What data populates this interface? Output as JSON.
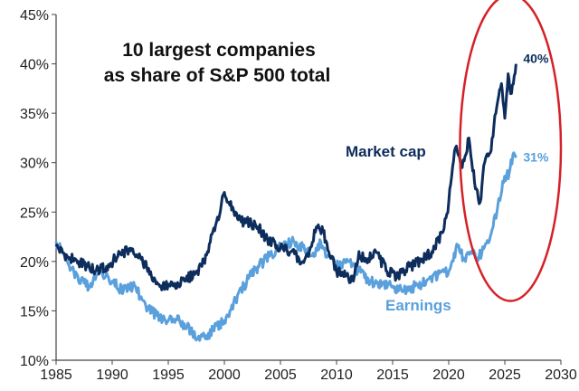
{
  "chart_data": {
    "type": "line",
    "title": "10 largest companies\nas share of S&P 500 total",
    "xlabel": "",
    "ylabel": "",
    "xlim": [
      1985,
      2030
    ],
    "ylim": [
      10,
      45
    ],
    "x_ticks": [
      "1985",
      "1990",
      "1995",
      "2000",
      "2005",
      "2010",
      "2015",
      "2020",
      "2025",
      "2030"
    ],
    "y_ticks": [
      "10%",
      "15%",
      "20%",
      "25%",
      "30%",
      "35%",
      "40%",
      "45%"
    ],
    "grid": false,
    "series": [
      {
        "name": "Market cap",
        "color": "#0d2d5c",
        "end_label": "40%",
        "x": [
          1985.0,
          1986.0,
          1987.0,
          1987.8,
          1988.5,
          1989.5,
          1990.5,
          1991.5,
          1992.5,
          1993.5,
          1994.5,
          1995.5,
          1996.5,
          1997.5,
          1998.0,
          1998.5,
          1999.3,
          2000.0,
          2000.4,
          2001.0,
          2001.5,
          2002.0,
          2003.0,
          2004.0,
          2005.0,
          2006.0,
          2007.0,
          2007.5,
          2008.2,
          2008.8,
          2009.3,
          2010.0,
          2010.8,
          2011.5,
          2012.0,
          2012.5,
          2013.5,
          2014.5,
          2015.5,
          2016.5,
          2017.5,
          2018.5,
          2019.5,
          2020.0,
          2020.6,
          2021.2,
          2021.8,
          2022.3,
          2022.8,
          2023.2,
          2023.7,
          2024.2,
          2024.7,
          2025.0,
          2025.3,
          2025.6,
          2026.0
        ],
        "values": [
          21.5,
          20.5,
          20.0,
          19.5,
          19.0,
          19.5,
          20.5,
          21.2,
          20.5,
          18.5,
          17.5,
          17.5,
          18.0,
          19.0,
          19.5,
          21.0,
          24.0,
          27.0,
          26.0,
          25.0,
          24.0,
          24.0,
          23.5,
          22.0,
          21.5,
          21.0,
          20.0,
          20.5,
          23.5,
          23.0,
          21.0,
          19.0,
          18.5,
          18.0,
          21.0,
          20.0,
          21.0,
          19.0,
          18.5,
          19.5,
          20.0,
          21.0,
          23.0,
          26.0,
          31.5,
          29.5,
          32.5,
          28.0,
          26.0,
          30.0,
          31.0,
          35.0,
          38.0,
          34.5,
          39.0,
          37.0,
          40.0
        ]
      },
      {
        "name": "Earnings",
        "color": "#5aa0dc",
        "end_label": "31%",
        "x": [
          1985.0,
          1986.0,
          1987.0,
          1988.0,
          1989.0,
          1990.0,
          1991.0,
          1992.0,
          1993.0,
          1994.0,
          1995.0,
          1996.0,
          1997.0,
          1997.8,
          1998.4,
          1999.0,
          2000.0,
          2001.0,
          2002.0,
          2003.0,
          2004.0,
          2005.0,
          2006.0,
          2007.0,
          2008.0,
          2008.6,
          2009.2,
          2010.0,
          2011.0,
          2012.0,
          2013.0,
          2014.0,
          2015.0,
          2016.0,
          2017.0,
          2018.0,
          2019.0,
          2020.0,
          2020.8,
          2021.5,
          2022.0,
          2022.7,
          2023.2,
          2023.7,
          2024.3,
          2024.9,
          2025.4,
          2025.8,
          2026.0
        ],
        "values": [
          22.0,
          20.0,
          18.0,
          17.5,
          19.0,
          18.0,
          17.0,
          17.5,
          15.5,
          14.5,
          14.0,
          14.0,
          13.0,
          12.0,
          12.5,
          13.0,
          14.0,
          16.0,
          18.0,
          19.5,
          20.5,
          21.5,
          22.0,
          21.5,
          20.5,
          22.0,
          20.5,
          19.5,
          20.0,
          19.0,
          18.0,
          17.5,
          17.5,
          17.0,
          17.5,
          18.0,
          18.5,
          19.0,
          21.5,
          20.0,
          21.0,
          20.5,
          21.5,
          22.5,
          25.0,
          28.0,
          29.0,
          31.0,
          30.5
        ]
      }
    ],
    "annotations": [
      {
        "text": "ellipse highlight around 2023-2026",
        "kind": "ellipse",
        "color": "#d62027",
        "x_range": [
          2021.0,
          2030.0
        ],
        "y_range": [
          16.0,
          47.0
        ]
      }
    ]
  }
}
